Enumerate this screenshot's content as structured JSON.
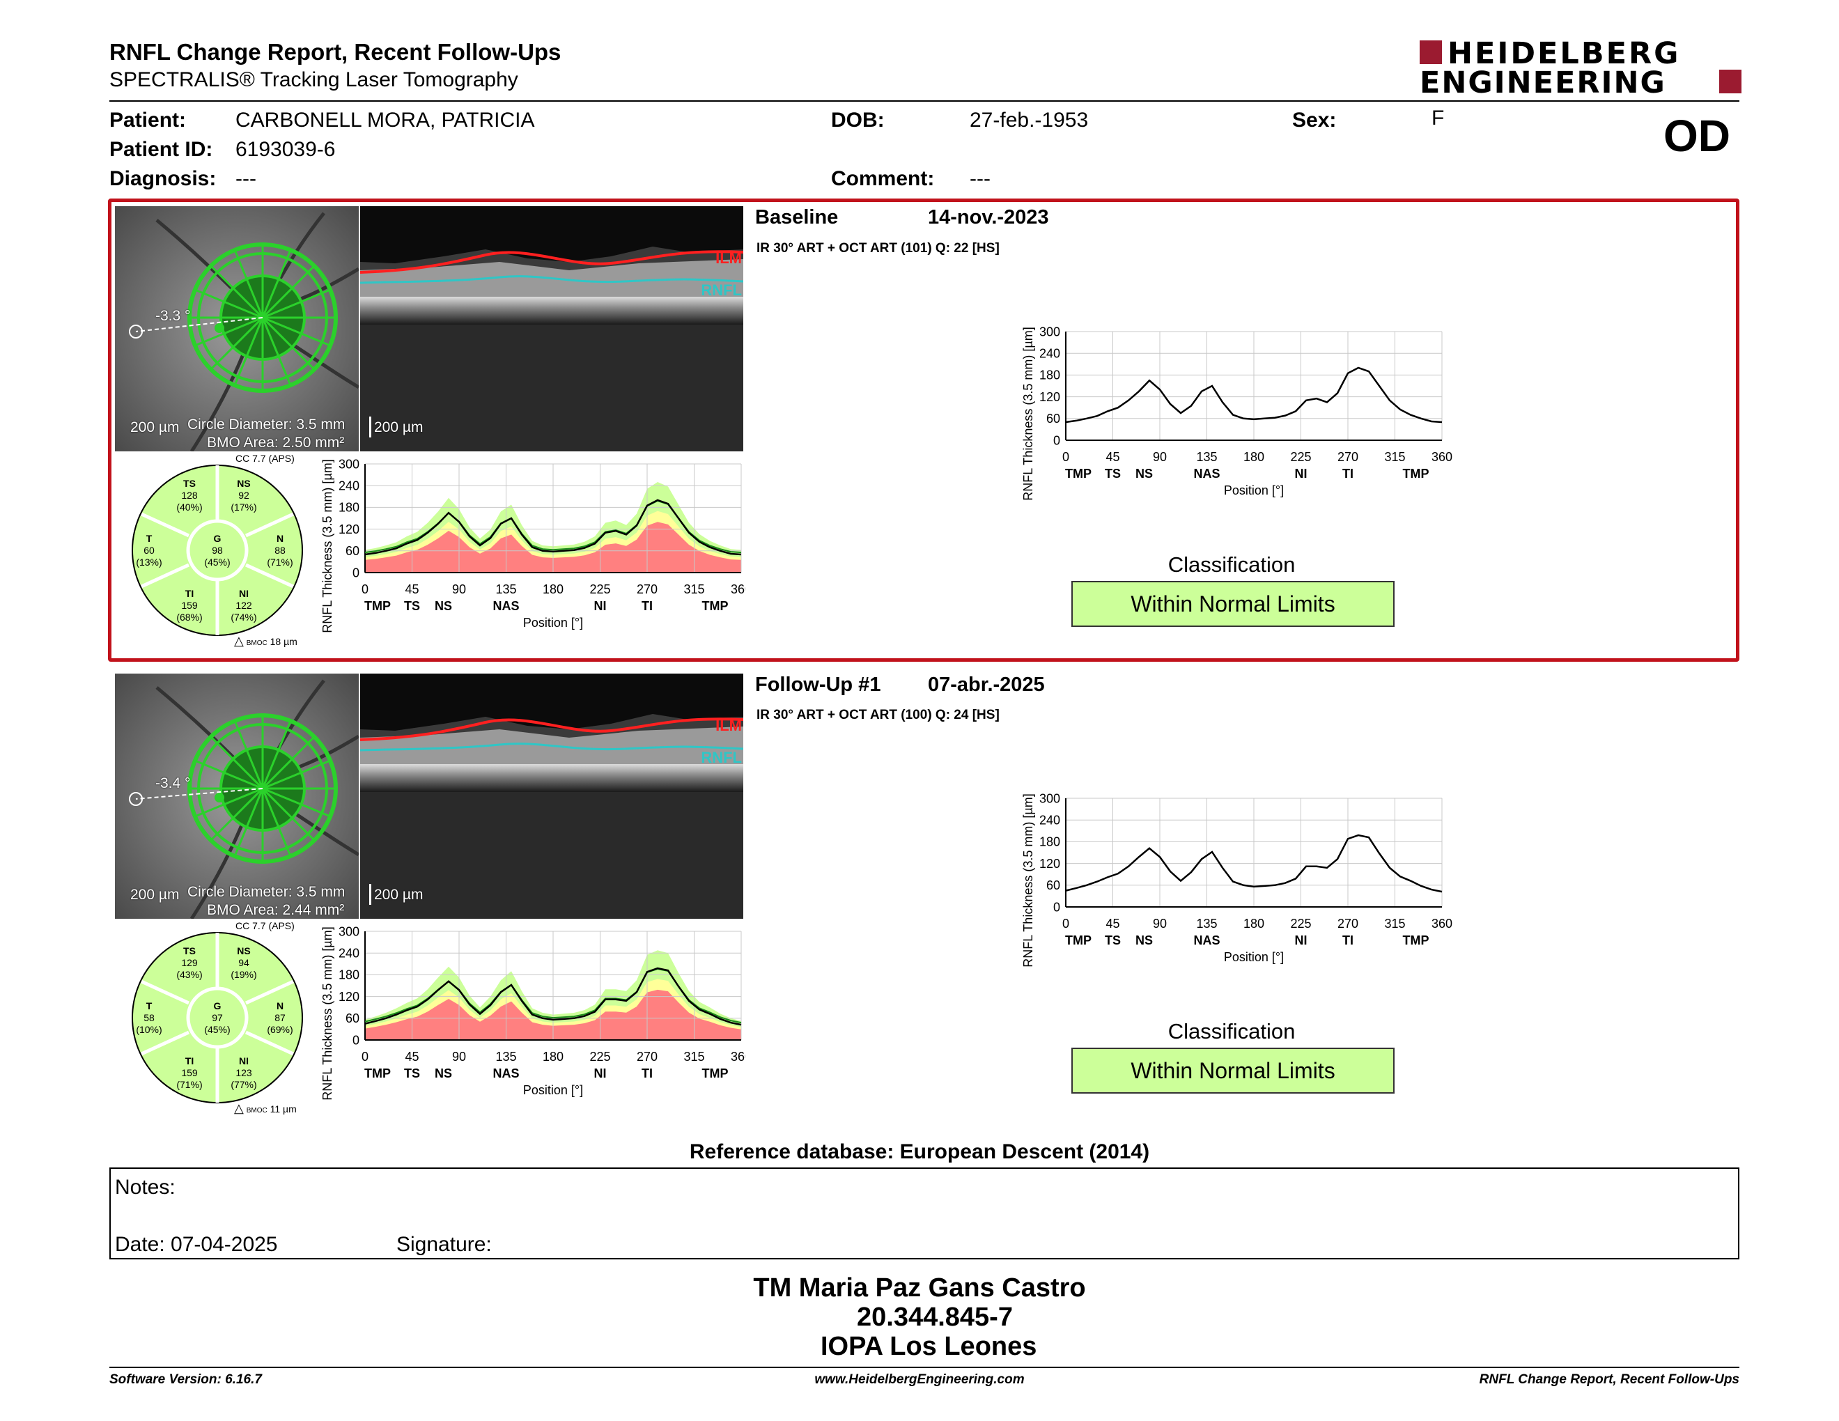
{
  "header": {
    "title": "RNFL Change Report, Recent Follow-Ups",
    "subtitle": "SPECTRALIS® Tracking Laser Tomography",
    "logo_line1": "HEIDELBERG",
    "logo_line2": "ENGINEERING",
    "eye": "OD"
  },
  "patient": {
    "patient_label": "Patient:",
    "patient_value": "CARBONELL MORA, PATRICIA",
    "id_label": "Patient ID:",
    "id_value": "6193039-6",
    "diag_label": "Diagnosis:",
    "diag_value": "---",
    "dob_label": "DOB:",
    "dob_value": "27-feb.-1953",
    "comment_label": "Comment:",
    "comment_value": "---",
    "sex_label": "Sex:",
    "sex_value": "F"
  },
  "common": {
    "scale_bar": "200 µm",
    "circle_diameter": "Circle Diameter: 3.5 mm",
    "ilm": "ILM",
    "rnfl": "RNFL",
    "y_axis_label": "RNFL Thickness (3.5 mm) [µm]",
    "x_axis_label": "Position [°]",
    "y_ticks": [
      "300",
      "240",
      "180",
      "120",
      "60",
      "0"
    ],
    "x_ticks": [
      "0",
      "45",
      "90",
      "135",
      "180",
      "225",
      "270",
      "315",
      "360"
    ],
    "sector_labels": [
      "TMP",
      "TS",
      "NS",
      "NAS",
      "NI",
      "TI",
      "TMP"
    ],
    "classification_title": "Classification",
    "cc": "CC 7.7 (APS)",
    "bmoc_prefix": "BMOC"
  },
  "exams": [
    {
      "name": "Baseline",
      "date": "14-nov.-2023",
      "acq": "IR 30° ART + OCT ART (101) Q: 22 [HS]",
      "angle": "-3.3 °",
      "bmo_area": "BMO Area: 2.50 mm²",
      "bmoc": "18 µm",
      "classification": "Within Normal Limits",
      "sectors": {
        "TS": {
          "label": "TS",
          "value": "128",
          "pct": "(40%)"
        },
        "NS": {
          "label": "NS",
          "value": "92",
          "pct": "(17%)"
        },
        "T": {
          "label": "T",
          "value": "60",
          "pct": "(13%)"
        },
        "G": {
          "label": "G",
          "value": "98",
          "pct": "(45%)"
        },
        "N": {
          "label": "N",
          "value": "88",
          "pct": "(71%)"
        },
        "TI": {
          "label": "TI",
          "value": "159",
          "pct": "(68%)"
        },
        "NI": {
          "label": "NI",
          "value": "122",
          "pct": "(74%)"
        }
      }
    },
    {
      "name": "Follow-Up #1",
      "date": "07-abr.-2025",
      "acq": "IR 30° ART + OCT ART (100) Q: 24 [HS]",
      "angle": "-3.4 °",
      "bmo_area": "BMO Area: 2.44 mm²",
      "bmoc": "11 µm",
      "classification": "Within Normal Limits",
      "sectors": {
        "TS": {
          "label": "TS",
          "value": "129",
          "pct": "(43%)"
        },
        "NS": {
          "label": "NS",
          "value": "94",
          "pct": "(19%)"
        },
        "T": {
          "label": "T",
          "value": "58",
          "pct": "(10%)"
        },
        "G": {
          "label": "G",
          "value": "97",
          "pct": "(45%)"
        },
        "N": {
          "label": "N",
          "value": "87",
          "pct": "(69%)"
        },
        "TI": {
          "label": "TI",
          "value": "159",
          "pct": "(71%)"
        },
        "NI": {
          "label": "NI",
          "value": "123",
          "pct": "(77%)"
        }
      }
    }
  ],
  "reference": "Reference database: European Descent (2014)",
  "notes": {
    "notes_label": "Notes:",
    "date_label": "Date: 07-04-2025",
    "signature_label": "Signature:"
  },
  "signature_block": {
    "name": "TM Maria Paz Gans Castro",
    "rut": "20.344.845-7",
    "institution": "IOPA Los Leones"
  },
  "footer": {
    "left": "Software Version: 6.16.7",
    "center": "www.HeidelbergEngineering.com",
    "right": "RNFL Change Report, Recent Follow-Ups"
  },
  "colors": {
    "brand_red": "#9b1b30",
    "frame_red": "#c1121b",
    "normal_green": "#ccff99",
    "borderline_yellow": "#ffff99",
    "outside_red": "#ff8080"
  },
  "chart_data": [
    {
      "type": "line",
      "title": "",
      "xlabel": "Position [°]",
      "ylabel": "RNFL Thickness (3.5 mm) [µm]",
      "xlim": [
        0,
        360
      ],
      "ylim": [
        0,
        300
      ],
      "x": [
        0,
        10,
        20,
        30,
        40,
        50,
        60,
        70,
        80,
        90,
        100,
        110,
        120,
        130,
        140,
        150,
        160,
        170,
        180,
        190,
        200,
        210,
        220,
        230,
        240,
        250,
        260,
        270,
        280,
        290,
        300,
        310,
        320,
        330,
        340,
        350,
        360
      ],
      "series": [
        {
          "values": [
            50,
            54,
            60,
            67,
            80,
            90,
            110,
            135,
            165,
            140,
            100,
            75,
            95,
            135,
            150,
            105,
            70,
            60,
            58,
            60,
            62,
            68,
            80,
            110,
            115,
            105,
            130,
            185,
            200,
            190,
            150,
            110,
            85,
            70,
            60,
            52,
            50
          ]
        }
      ]
    },
    {
      "type": "line",
      "title": "",
      "xlabel": "Position [°]",
      "ylabel": "RNFL Thickness (3.5 mm) [µm]",
      "xlim": [
        0,
        360
      ],
      "ylim": [
        0,
        300
      ],
      "x": [
        0,
        10,
        20,
        30,
        40,
        50,
        60,
        70,
        80,
        90,
        100,
        110,
        120,
        130,
        140,
        150,
        160,
        170,
        180,
        190,
        200,
        210,
        220,
        230,
        240,
        250,
        260,
        270,
        280,
        290,
        300,
        310,
        320,
        330,
        340,
        350,
        360
      ],
      "series": [
        {
          "values": [
            45,
            52,
            60,
            70,
            82,
            92,
            112,
            138,
            162,
            138,
            98,
            72,
            96,
            132,
            152,
            108,
            70,
            60,
            56,
            58,
            60,
            66,
            78,
            112,
            112,
            108,
            132,
            188,
            198,
            192,
            148,
            108,
            84,
            72,
            58,
            48,
            42
          ]
        }
      ]
    }
  ]
}
